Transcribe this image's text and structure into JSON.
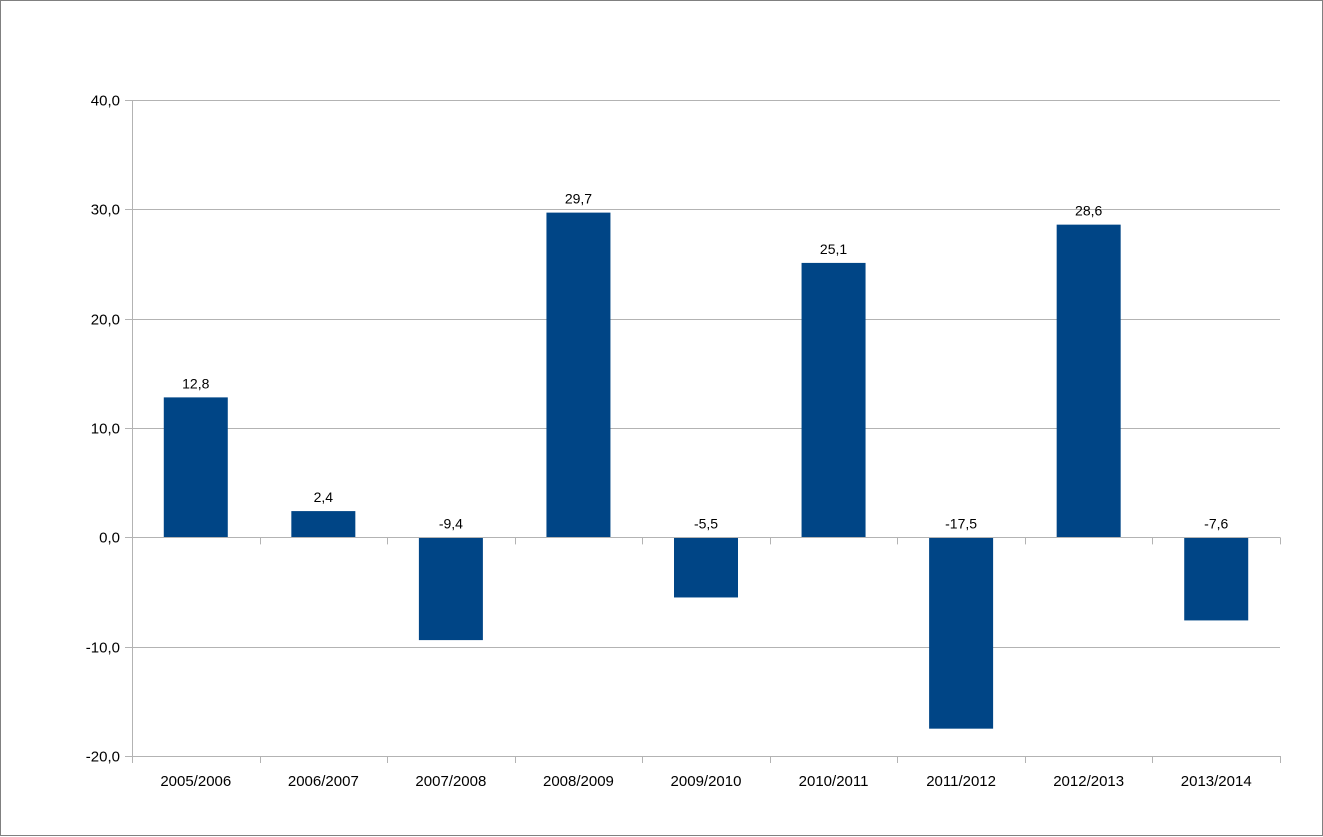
{
  "chart_data": {
    "type": "bar",
    "categories": [
      "2005/2006",
      "2006/2007",
      "2007/2008",
      "2008/2009",
      "2009/2010",
      "2010/2011",
      "2011/2012",
      "2012/2013",
      "2013/2014"
    ],
    "values": [
      12.8,
      2.4,
      -9.4,
      29.7,
      -5.5,
      25.1,
      -17.5,
      28.6,
      -7.6
    ],
    "data_labels": [
      "12,8",
      "2,4",
      "-9,4",
      "29,7",
      "-5,5",
      "25,1",
      "-17,5",
      "28,6",
      "-7,6"
    ],
    "y_ticks": [
      40,
      30,
      20,
      10,
      0,
      -10,
      -20
    ],
    "y_tick_labels": [
      "40,0",
      "30,0",
      "20,0",
      "10,0",
      "0,0",
      "-10,0",
      "-20,0"
    ],
    "ylim": [
      -20,
      40
    ],
    "grid": true,
    "legend": "none",
    "bar_color": "#004586",
    "grid_color": "#b3b3b3",
    "title": "",
    "xlabel": "",
    "ylabel": ""
  }
}
